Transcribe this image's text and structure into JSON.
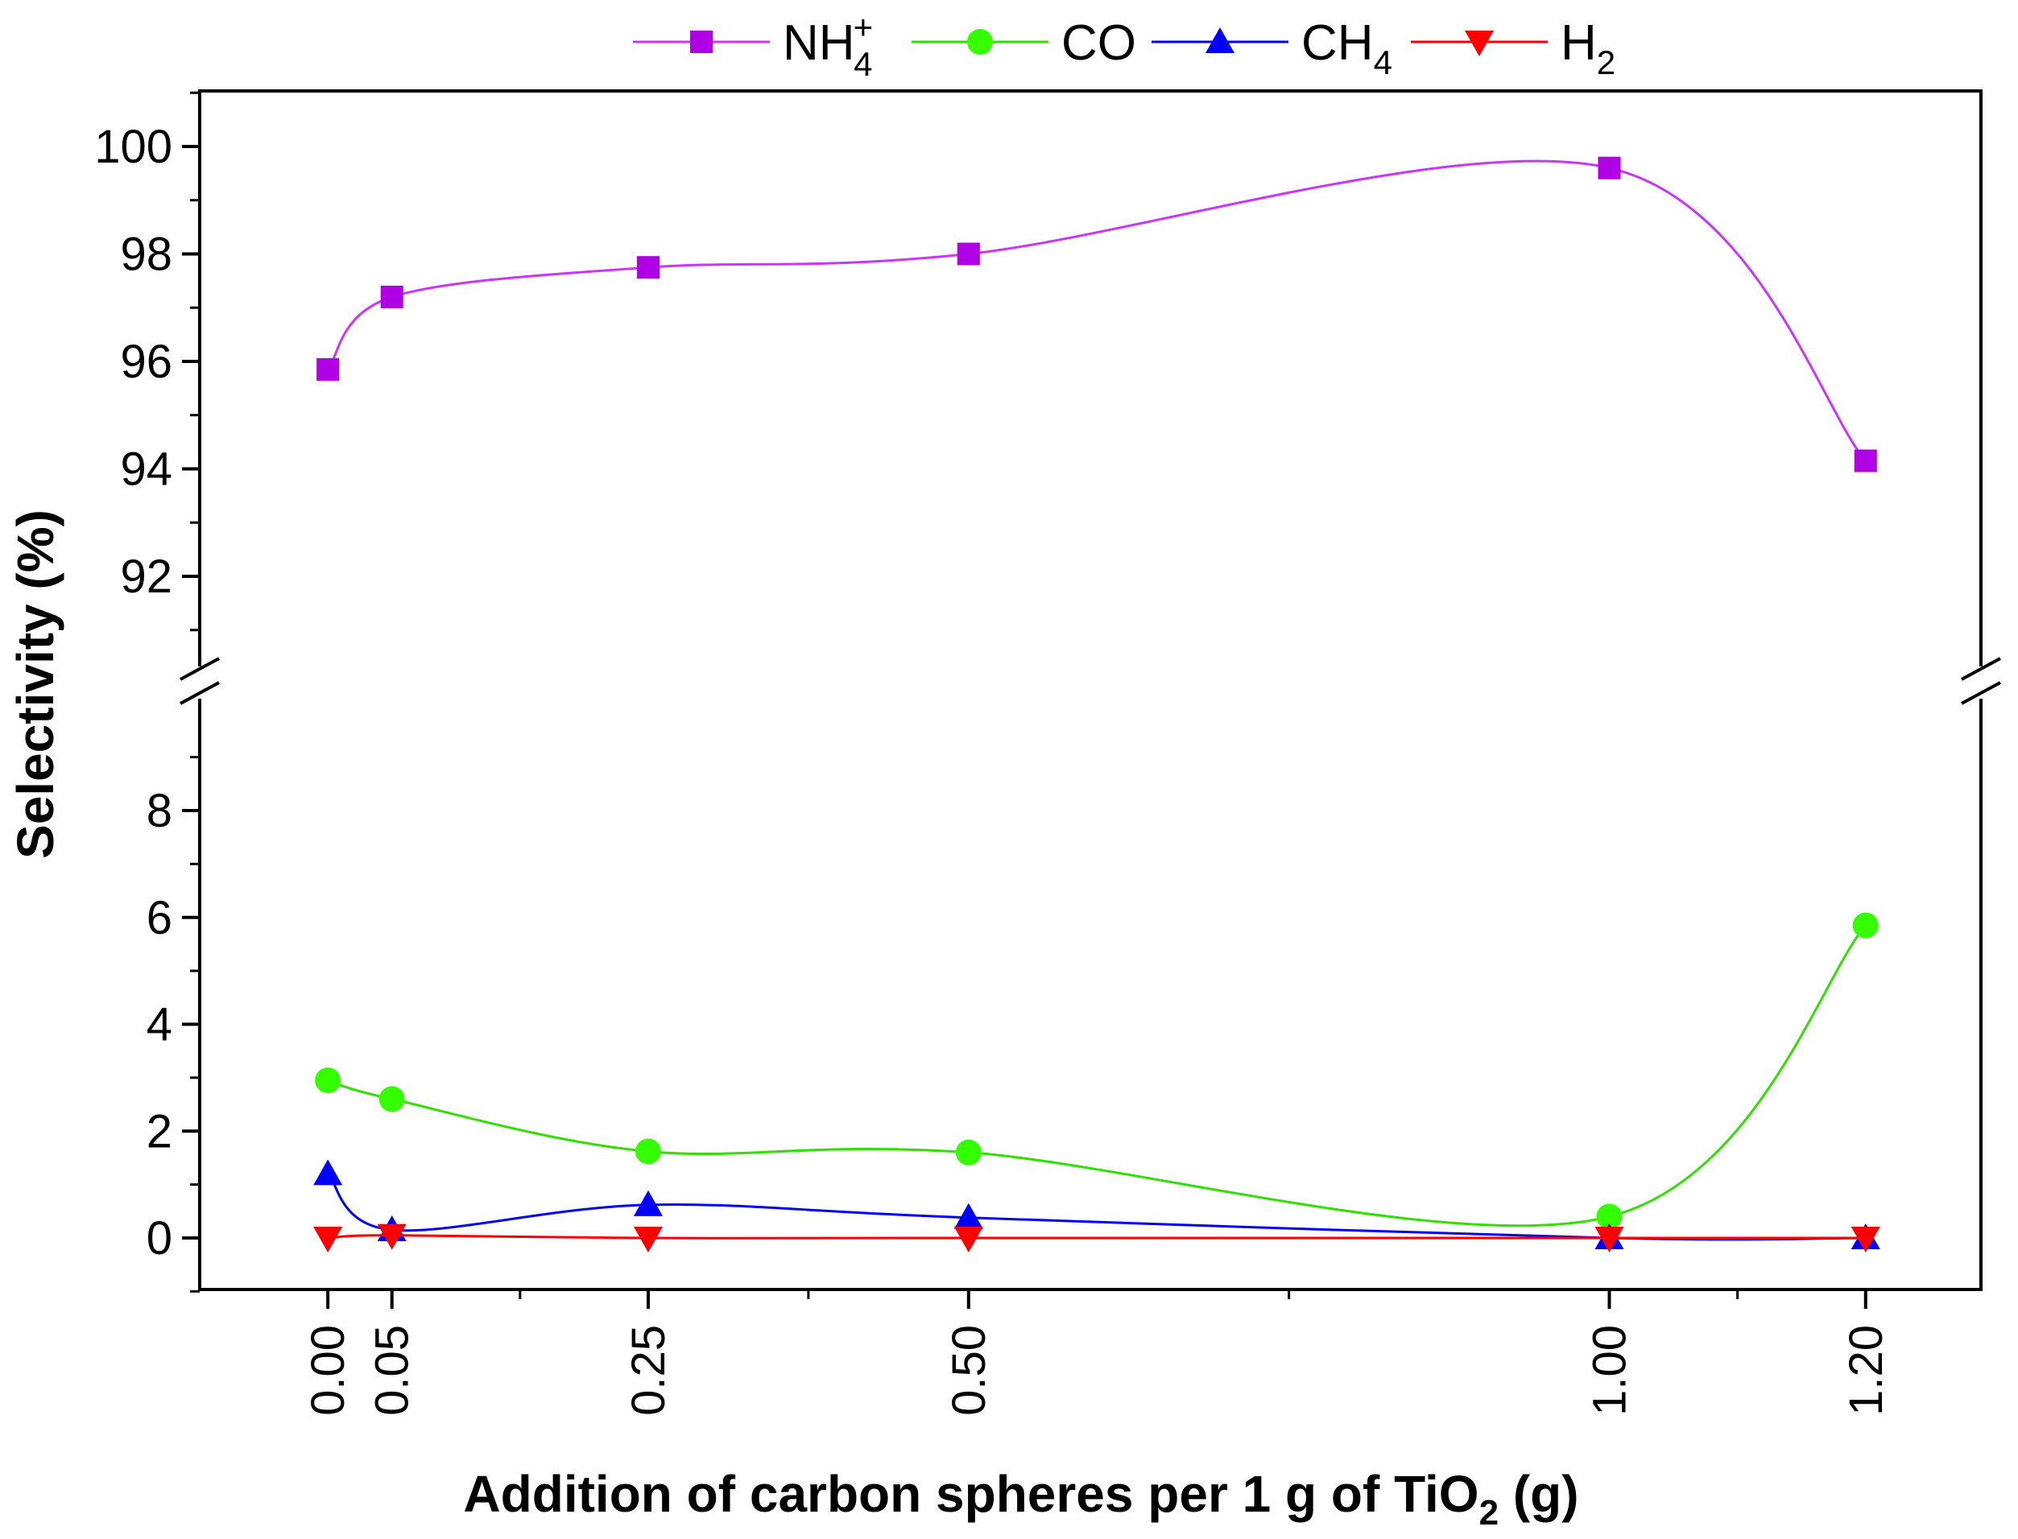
{
  "chart_data": {
    "type": "line",
    "title": "",
    "xlabel": {
      "main": "Addition of carbon spheres per 1 g of TiO",
      "subscript": "2",
      "suffix": " (g)"
    },
    "ylabel": "Selectivity (%)",
    "x": [
      0.0,
      0.05,
      0.25,
      0.5,
      1.0,
      1.2
    ],
    "x_tick_labels": [
      "0.00",
      "0.05",
      "0.25",
      "0.50",
      "1.00",
      "1.20"
    ],
    "xlim": [
      -0.1,
      1.29
    ],
    "y_axis_break": {
      "lower_range": [
        -1,
        10
      ],
      "upper_range": [
        90,
        101
      ]
    },
    "y_tick_labels_lower": [
      "0",
      "2",
      "4",
      "6",
      "8"
    ],
    "y_tick_labels_upper": [
      "92",
      "94",
      "96",
      "98",
      "100"
    ],
    "y_ticks_lower": [
      0,
      2,
      4,
      6,
      8
    ],
    "y_ticks_upper": [
      92,
      94,
      96,
      98,
      100
    ],
    "legend_position": "top",
    "series": [
      {
        "name": "NH",
        "sub": "4",
        "sup": "+",
        "marker": "square",
        "color": "#b000e6",
        "line_color": "#cc33ff",
        "values": [
          95.85,
          97.2,
          97.75,
          98.0,
          99.6,
          94.15
        ]
      },
      {
        "name": "CO",
        "sub": "",
        "sup": "",
        "marker": "circle",
        "color": "#33ff00",
        "line_color": "#2fe000",
        "values": [
          2.95,
          2.6,
          1.62,
          1.6,
          0.4,
          5.85
        ]
      },
      {
        "name": "CH",
        "sub": "4",
        "sup": "",
        "marker": "triangle-up",
        "color": "#0000ff",
        "line_color": "#0000ff",
        "values": [
          1.2,
          0.15,
          0.62,
          0.38,
          0.0,
          0.0
        ]
      },
      {
        "name": "H",
        "sub": "2",
        "sup": "",
        "marker": "triangle-down",
        "color": "#ff0000",
        "line_color": "#ff0000",
        "values": [
          0.0,
          0.05,
          0.0,
          0.0,
          0.0,
          0.0
        ]
      }
    ]
  }
}
